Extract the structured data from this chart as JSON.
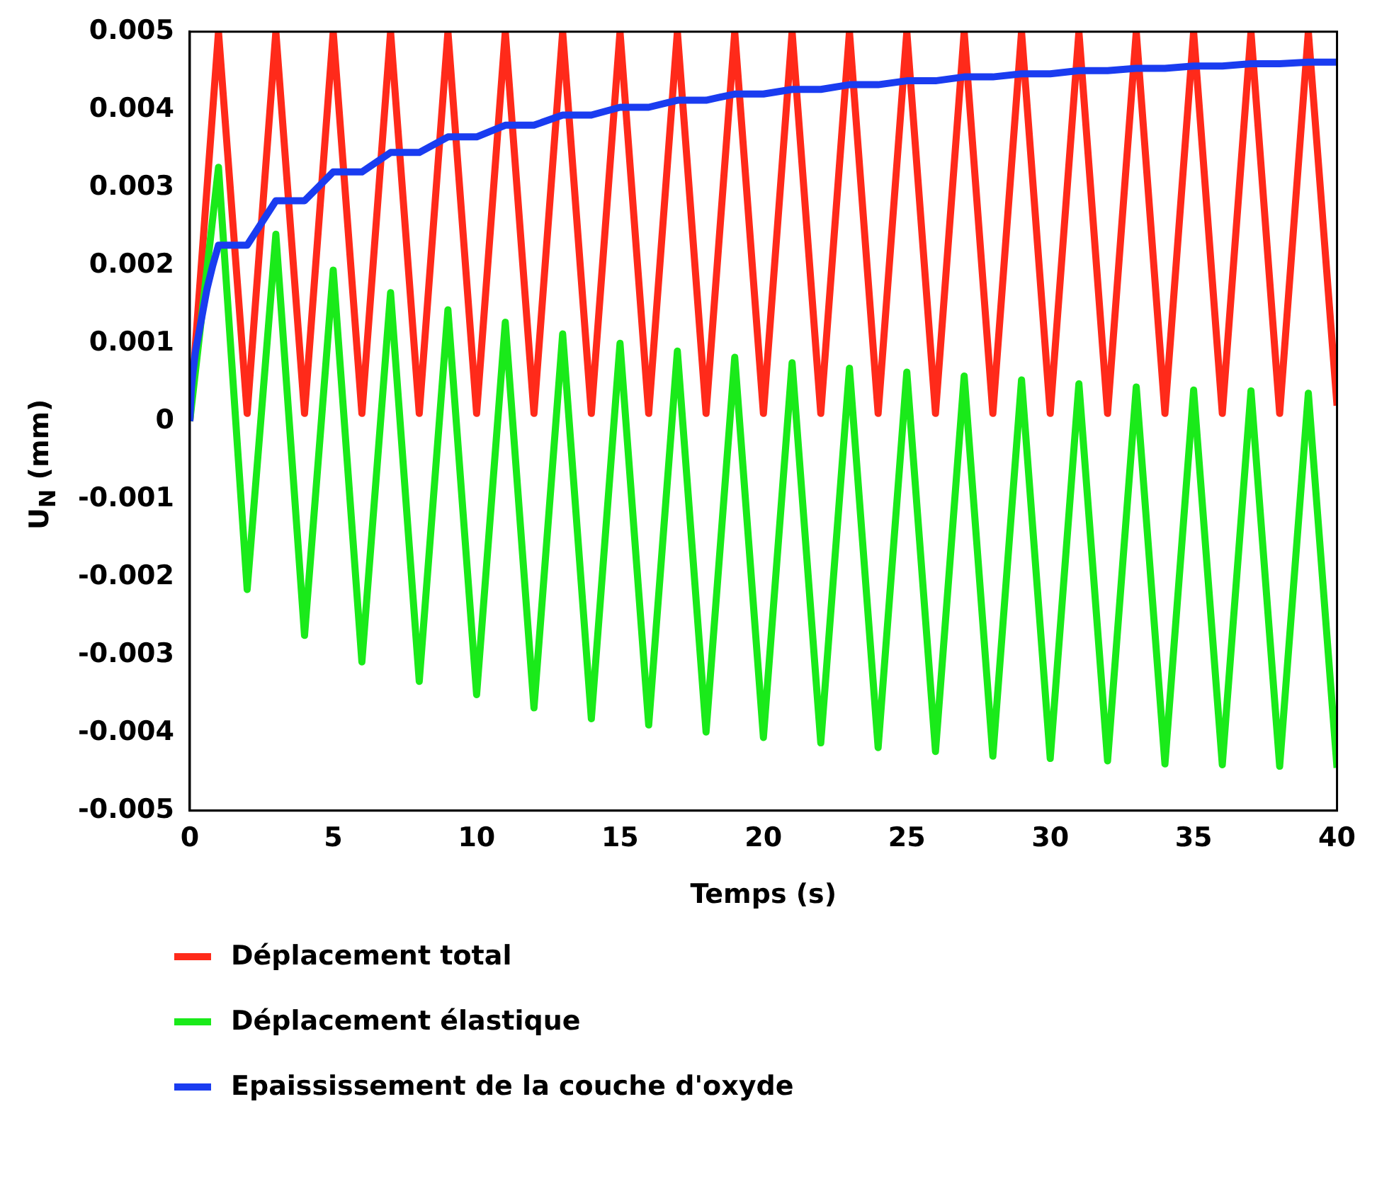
{
  "chart_data": {
    "type": "line",
    "xlabel": "Temps (s)",
    "ylabel": "U$_{N}$ (mm)",
    "xlim": [
      0,
      40
    ],
    "ylim": [
      -0.005,
      0.005
    ],
    "xticks": [
      0,
      5,
      10,
      15,
      20,
      25,
      30,
      35,
      40
    ],
    "yticks": [
      -0.005,
      -0.004,
      -0.003,
      -0.002,
      -0.001,
      0,
      0.001,
      0.002,
      0.003,
      0.004,
      0.005
    ],
    "grid": false,
    "legend": "bottom",
    "marker": "none",
    "line_style": "solid",
    "series": [
      {
        "name": "Déplacement total",
        "color": "#ff2a1a",
        "x": [
          0,
          1,
          2,
          3,
          4,
          5,
          6,
          7,
          8,
          9,
          10,
          11,
          12,
          13,
          14,
          15,
          16,
          17,
          18,
          19,
          20,
          21,
          22,
          23,
          24,
          25,
          26,
          27,
          28,
          29,
          30,
          31,
          32,
          33,
          34,
          35,
          36,
          37,
          38,
          39,
          40
        ],
        "values": [
          0,
          0.005,
          0.0001,
          0.005,
          0.0001,
          0.005,
          0.0001,
          0.005,
          0.0001,
          0.005,
          0.0001,
          0.005,
          0.0001,
          0.005,
          0.0001,
          0.005,
          0.0001,
          0.005,
          0.0001,
          0.005,
          0.0001,
          0.005,
          0.0001,
          0.005,
          0.0001,
          0.005,
          0.0001,
          0.005,
          0.0001,
          0.005,
          0.0001,
          0.005,
          0.0001,
          0.005,
          0.0001,
          0.005,
          0.0001,
          0.005,
          0.0001,
          0.005,
          0.0002
        ]
      },
      {
        "name": "Déplacement élastique",
        "color": "#1aea1a",
        "x": [
          0,
          1,
          2,
          3,
          4,
          5,
          6,
          7,
          8,
          9,
          10,
          11,
          12,
          13,
          14,
          15,
          16,
          17,
          18,
          19,
          20,
          21,
          22,
          23,
          24,
          25,
          26,
          27,
          28,
          29,
          30,
          31,
          32,
          33,
          34,
          35,
          36,
          37,
          38,
          39,
          40
        ],
        "values": [
          0,
          0.00326,
          -0.00216,
          0.0024,
          -0.00275,
          0.00194,
          -0.00309,
          0.00165,
          -0.00334,
          0.00143,
          -0.00351,
          0.00127,
          -0.00368,
          0.00112,
          -0.00382,
          0.001,
          -0.0039,
          0.0009,
          -0.00399,
          0.00082,
          -0.00406,
          0.00075,
          -0.00413,
          0.00068,
          -0.00419,
          0.00063,
          -0.00424,
          0.00058,
          -0.0043,
          0.00053,
          -0.00433,
          0.00048,
          -0.00436,
          0.00044,
          -0.0044,
          0.0004,
          -0.00441,
          0.00039,
          -0.00443,
          0.00036,
          -0.00445
        ]
      },
      {
        "name": "Epaississement de la couche d'oxyde",
        "color": "#1a3cf0",
        "x": [
          0,
          0.05,
          0.1,
          0.2,
          0.4,
          0.6,
          0.8,
          1,
          2,
          3,
          4,
          5,
          6,
          7,
          8,
          9,
          10,
          11,
          12,
          13,
          14,
          15,
          16,
          17,
          18,
          19,
          20,
          21,
          22,
          23,
          24,
          25,
          26,
          27,
          28,
          29,
          30,
          31,
          32,
          33,
          34,
          35,
          36,
          37,
          38,
          39,
          40
        ],
        "values": [
          0,
          0.0004,
          0.0006,
          0.0009,
          0.0013,
          0.0017,
          0.002,
          0.00226,
          0.00226,
          0.00283,
          0.00283,
          0.0032,
          0.0032,
          0.00345,
          0.00345,
          0.00365,
          0.00365,
          0.0038,
          0.0038,
          0.00393,
          0.00393,
          0.00403,
          0.00403,
          0.00412,
          0.00412,
          0.0042,
          0.0042,
          0.00426,
          0.00426,
          0.00432,
          0.00432,
          0.00437,
          0.00437,
          0.00442,
          0.00442,
          0.00446,
          0.00446,
          0.0045,
          0.0045,
          0.00453,
          0.00453,
          0.00456,
          0.00456,
          0.00459,
          0.00459,
          0.00461,
          0.00461
        ]
      }
    ]
  }
}
